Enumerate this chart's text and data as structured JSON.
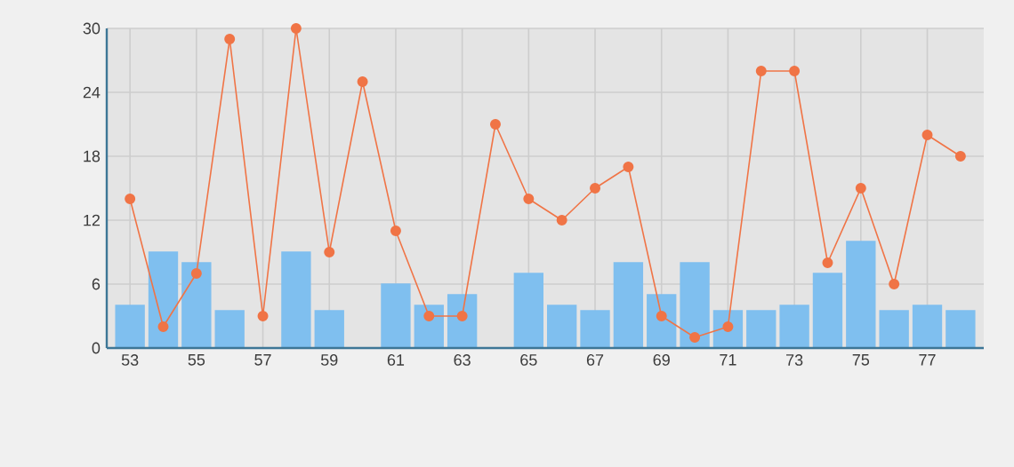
{
  "chart_data": {
    "type": "bar",
    "categories": [
      "53",
      null,
      "55",
      null,
      "57",
      null,
      "59",
      null,
      "61",
      null,
      "63",
      null,
      "65",
      null,
      "67",
      null,
      "69",
      null,
      "71",
      null,
      "73",
      null,
      "75",
      null,
      "77",
      null
    ],
    "series": [
      {
        "color": "#7fbfef",
        "values": [
          4,
          9,
          8,
          3.5,
          0,
          9,
          3.5,
          0,
          6,
          4,
          5,
          0,
          7,
          4,
          3.5,
          8,
          5,
          8,
          3.5,
          3.5,
          4,
          7,
          10,
          3.5,
          4,
          3.5
        ]
      },
      {
        "type": "line",
        "color": "#f07446",
        "values": [
          14,
          2,
          7,
          29,
          3,
          30,
          9,
          25,
          11,
          3,
          3,
          21,
          14,
          12,
          15,
          17,
          3,
          1,
          2,
          26,
          26,
          8,
          15,
          6,
          20,
          18
        ]
      }
    ],
    "ylim": [
      0,
      30
    ],
    "yticks": [
      0,
      6,
      12,
      18,
      24,
      30
    ],
    "grid": true,
    "marker": "circle",
    "line_style": "solid"
  }
}
